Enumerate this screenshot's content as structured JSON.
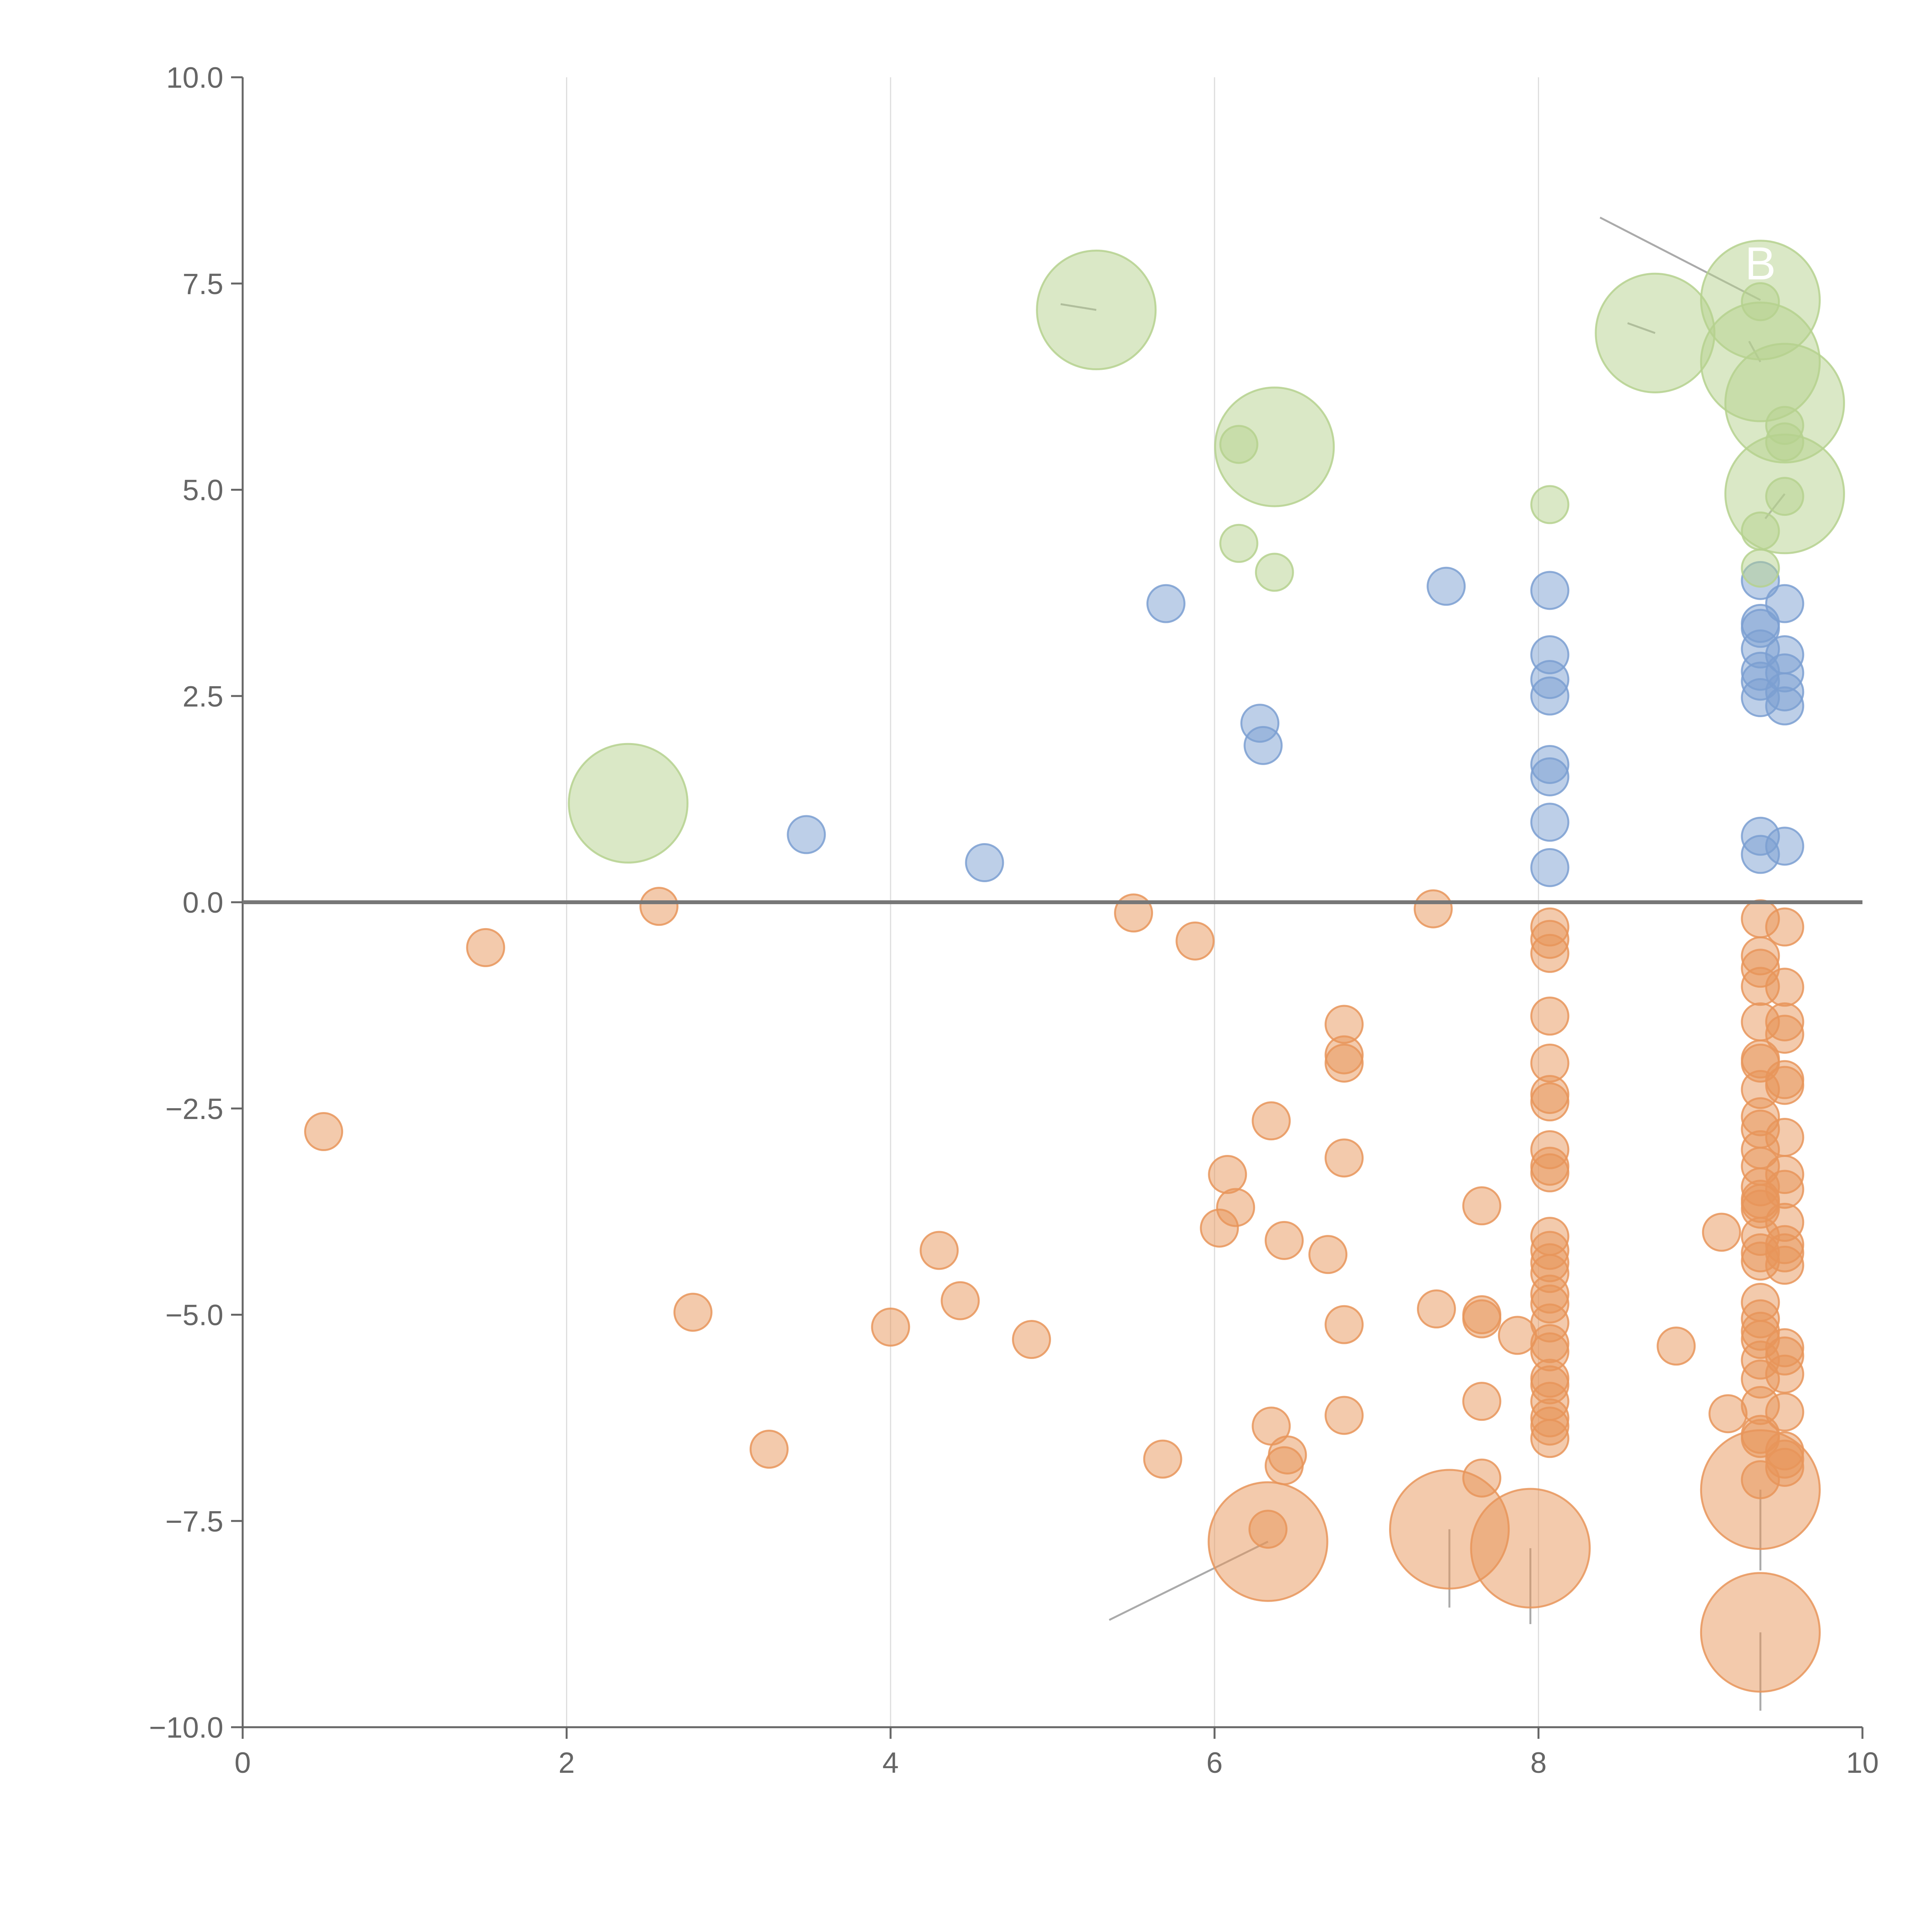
{
  "chart_data": {
    "type": "scatter",
    "title": "",
    "xlabel": "",
    "ylabel": "",
    "xlim": [
      0,
      10
    ],
    "ylim": [
      -10,
      10
    ],
    "x_ticks": [
      0,
      2,
      4,
      6,
      8,
      10
    ],
    "x_tick_labels": [
      "0",
      "2",
      "4",
      "6",
      "8",
      "10"
    ],
    "y_ticks": [
      10,
      7.5,
      5,
      2.5,
      0,
      -2.5,
      -5,
      -7.5,
      -10
    ],
    "y_tick_labels": [
      "10.0",
      "7.5",
      "5.0",
      "2.5",
      "0.0",
      "−2.5",
      "−5.0",
      "−7.5",
      "−10.0"
    ],
    "grid": "vertical",
    "zero_line": true,
    "legend": "none",
    "annotation": {
      "text": "B",
      "x": 9.37,
      "y": 7.55
    },
    "series": [
      {
        "name": "orange",
        "color": "#e8955a",
        "points": [
          [
            0.5,
            -2.78,
            1
          ],
          [
            1.5,
            -0.55,
            1
          ],
          [
            2.57,
            -0.05,
            1
          ],
          [
            2.78,
            -4.97,
            1
          ],
          [
            3.25,
            -6.63,
            1
          ],
          [
            4.0,
            -5.15,
            1
          ],
          [
            4.3,
            -4.22,
            1
          ],
          [
            4.43,
            -4.83,
            1
          ],
          [
            4.87,
            -5.3,
            1
          ],
          [
            5.5,
            -0.13,
            1
          ],
          [
            5.68,
            -6.75,
            1
          ],
          [
            5.88,
            -0.47,
            1
          ],
          [
            6.03,
            -3.95,
            1
          ],
          [
            6.08,
            -3.3,
            1
          ],
          [
            6.13,
            -3.7,
            1
          ],
          [
            6.35,
            -2.65,
            1
          ],
          [
            6.35,
            -6.35,
            1
          ],
          [
            6.33,
            -7.6,
            1
          ],
          [
            6.43,
            -4.1,
            1
          ],
          [
            6.45,
            -6.7,
            1
          ],
          [
            6.43,
            -6.83,
            1
          ],
          [
            6.33,
            -7.75,
            3.2
          ],
          [
            6.7,
            -4.27,
            1
          ],
          [
            6.8,
            -1.48,
            1
          ],
          [
            6.8,
            -1.85,
            1
          ],
          [
            6.8,
            -1.95,
            1
          ],
          [
            6.8,
            -3.1,
            1
          ],
          [
            6.8,
            -5.12,
            1
          ],
          [
            6.8,
            -6.22,
            1
          ],
          [
            7.35,
            -0.08,
            1
          ],
          [
            7.37,
            -4.93,
            1
          ],
          [
            7.45,
            -7.6,
            3.2
          ],
          [
            7.65,
            -3.68,
            1
          ],
          [
            7.65,
            -5.0,
            1
          ],
          [
            7.65,
            -5.05,
            1
          ],
          [
            7.65,
            -6.05,
            1
          ],
          [
            7.65,
            -6.98,
            1
          ],
          [
            7.87,
            -5.25,
            1
          ],
          [
            7.95,
            -7.83,
            3.2
          ],
          [
            8.07,
            -0.3,
            1
          ],
          [
            8.07,
            -0.45,
            1
          ],
          [
            8.07,
            -0.62,
            1
          ],
          [
            8.07,
            -1.38,
            1
          ],
          [
            8.07,
            -1.95,
            1
          ],
          [
            8.07,
            -2.33,
            1
          ],
          [
            8.07,
            -2.42,
            1
          ],
          [
            8.07,
            -3.0,
            1
          ],
          [
            8.07,
            -3.2,
            1
          ],
          [
            8.07,
            -3.28,
            1
          ],
          [
            8.07,
            -4.05,
            1
          ],
          [
            8.07,
            -4.22,
            1
          ],
          [
            8.07,
            -4.37,
            1
          ],
          [
            8.07,
            -4.5,
            1
          ],
          [
            8.07,
            -4.75,
            1
          ],
          [
            8.07,
            -4.87,
            1
          ],
          [
            8.07,
            -5.1,
            1
          ],
          [
            8.07,
            -5.35,
            1
          ],
          [
            8.07,
            -5.45,
            1
          ],
          [
            8.07,
            -5.77,
            1
          ],
          [
            8.07,
            -5.85,
            1
          ],
          [
            8.07,
            -6.05,
            1
          ],
          [
            8.07,
            -6.25,
            1
          ],
          [
            8.07,
            -6.35,
            1
          ],
          [
            8.07,
            -6.5,
            1
          ],
          [
            8.85,
            -5.38,
            1
          ],
          [
            9.13,
            -4.0,
            1
          ],
          [
            9.17,
            -6.2,
            1
          ],
          [
            9.37,
            -0.2,
            1
          ],
          [
            9.37,
            -0.65,
            1
          ],
          [
            9.37,
            -0.8,
            1
          ],
          [
            9.37,
            -1.02,
            1
          ],
          [
            9.37,
            -1.45,
            1
          ],
          [
            9.37,
            -1.9,
            1
          ],
          [
            9.37,
            -1.95,
            1
          ],
          [
            9.37,
            -2.27,
            1
          ],
          [
            9.37,
            -2.6,
            1
          ],
          [
            9.37,
            -2.75,
            1
          ],
          [
            9.37,
            -3.0,
            1
          ],
          [
            9.37,
            -3.2,
            1
          ],
          [
            9.37,
            -3.45,
            1
          ],
          [
            9.37,
            -3.6,
            1
          ],
          [
            9.37,
            -3.65,
            1
          ],
          [
            9.37,
            -3.72,
            1
          ],
          [
            9.37,
            -4.05,
            1
          ],
          [
            9.37,
            -4.25,
            1
          ],
          [
            9.37,
            -4.35,
            1
          ],
          [
            9.37,
            -4.85,
            1
          ],
          [
            9.37,
            -5.05,
            1
          ],
          [
            9.37,
            -5.2,
            1
          ],
          [
            9.37,
            -5.3,
            1
          ],
          [
            9.37,
            -5.55,
            1
          ],
          [
            9.37,
            -5.78,
            1
          ],
          [
            9.37,
            -6.1,
            1
          ],
          [
            9.37,
            -6.45,
            1
          ],
          [
            9.37,
            -6.5,
            1
          ],
          [
            9.37,
            -7.0,
            1
          ],
          [
            9.37,
            -7.12,
            3.2
          ],
          [
            9.37,
            -8.85,
            3.2
          ],
          [
            9.52,
            -0.3,
            1
          ],
          [
            9.52,
            -1.03,
            1
          ],
          [
            9.52,
            -1.45,
            1
          ],
          [
            9.52,
            -1.6,
            1
          ],
          [
            9.52,
            -2.15,
            1
          ],
          [
            9.52,
            -2.22,
            1
          ],
          [
            9.52,
            -2.85,
            1
          ],
          [
            9.52,
            -3.3,
            1
          ],
          [
            9.52,
            -3.48,
            1
          ],
          [
            9.52,
            -3.88,
            1
          ],
          [
            9.52,
            -4.15,
            1
          ],
          [
            9.52,
            -4.25,
            1
          ],
          [
            9.52,
            -4.4,
            1
          ],
          [
            9.52,
            -5.4,
            1
          ],
          [
            9.52,
            -5.5,
            1
          ],
          [
            9.52,
            -5.72,
            1
          ],
          [
            9.52,
            -6.18,
            1
          ],
          [
            9.52,
            -6.65,
            1
          ],
          [
            9.52,
            -6.75,
            1
          ],
          [
            9.52,
            -6.85,
            1
          ]
        ]
      },
      {
        "name": "blue",
        "color": "#7b9fd1",
        "points": [
          [
            3.48,
            0.82,
            1
          ],
          [
            4.58,
            0.48,
            1
          ],
          [
            5.7,
            3.62,
            1
          ],
          [
            6.28,
            2.17,
            1
          ],
          [
            6.3,
            1.9,
            1
          ],
          [
            7.43,
            3.83,
            1
          ],
          [
            8.07,
            3.78,
            1
          ],
          [
            8.07,
            3.0,
            1
          ],
          [
            8.07,
            2.7,
            1
          ],
          [
            8.07,
            2.5,
            1
          ],
          [
            8.07,
            1.67,
            1
          ],
          [
            8.07,
            1.52,
            1
          ],
          [
            8.07,
            0.97,
            1
          ],
          [
            8.07,
            0.42,
            1
          ],
          [
            9.37,
            3.9,
            1
          ],
          [
            9.37,
            3.38,
            1
          ],
          [
            9.37,
            3.32,
            1
          ],
          [
            9.37,
            3.07,
            1
          ],
          [
            9.37,
            2.8,
            1
          ],
          [
            9.37,
            2.68,
            1
          ],
          [
            9.37,
            2.48,
            1
          ],
          [
            9.37,
            0.8,
            1
          ],
          [
            9.37,
            0.58,
            1
          ],
          [
            9.52,
            3.62,
            1
          ],
          [
            9.52,
            3.0,
            1
          ],
          [
            9.52,
            2.78,
            1
          ],
          [
            9.52,
            2.55,
            1
          ],
          [
            9.52,
            2.38,
            1
          ],
          [
            9.52,
            0.68,
            1
          ]
        ]
      },
      {
        "name": "green",
        "color": "#b5d18e",
        "points": [
          [
            2.38,
            1.2,
            3.2
          ],
          [
            5.27,
            7.18,
            3.2
          ],
          [
            6.15,
            5.55,
            1
          ],
          [
            6.15,
            4.35,
            1
          ],
          [
            6.37,
            5.52,
            3.2
          ],
          [
            6.37,
            4.0,
            1
          ],
          [
            8.07,
            4.82,
            1
          ],
          [
            8.72,
            6.9,
            3.2
          ],
          [
            9.37,
            7.3,
            3.2
          ],
          [
            9.37,
            7.28,
            1
          ],
          [
            9.37,
            6.55,
            3.2
          ],
          [
            9.37,
            4.5,
            1
          ],
          [
            9.37,
            4.05,
            1
          ],
          [
            9.52,
            6.05,
            3.2
          ],
          [
            9.52,
            5.78,
            1
          ],
          [
            9.52,
            5.58,
            1
          ],
          [
            9.52,
            4.95,
            3.2
          ],
          [
            9.52,
            4.92,
            1
          ]
        ]
      }
    ],
    "leader_lines": [
      {
        "x1": 5.35,
        "y1": -8.7,
        "x2": 6.33,
        "y2": -7.75
      },
      {
        "x1": 7.45,
        "y1": -8.55,
        "x2": 7.45,
        "y2": -7.6
      },
      {
        "x1": 7.95,
        "y1": -8.75,
        "x2": 7.95,
        "y2": -7.83
      },
      {
        "x1": 9.37,
        "y1": -8.1,
        "x2": 9.37,
        "y2": -7.12
      },
      {
        "x1": 9.37,
        "y1": -9.8,
        "x2": 9.37,
        "y2": -8.85
      },
      {
        "x1": 8.38,
        "y1": 8.3,
        "x2": 9.37,
        "y2": 7.3
      },
      {
        "x1": 5.05,
        "y1": 7.25,
        "x2": 5.27,
        "y2": 7.18
      },
      {
        "x1": 8.55,
        "y1": 7.02,
        "x2": 8.72,
        "y2": 6.9
      },
      {
        "x1": 9.3,
        "y1": 6.8,
        "x2": 9.37,
        "y2": 6.55
      },
      {
        "x1": 9.4,
        "y1": 4.65,
        "x2": 9.52,
        "y2": 4.95
      }
    ]
  }
}
